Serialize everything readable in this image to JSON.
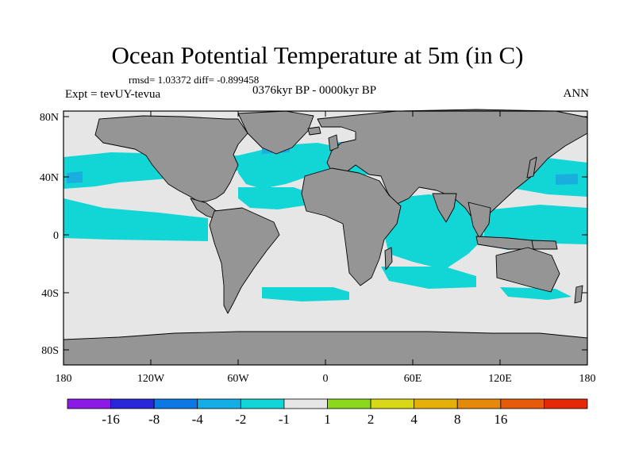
{
  "title": "Ocean Potential Temperature at 5m (in C)",
  "stats": "rmsd= 1.03372 diff= -0.899458",
  "experiment": "Expt = tevUY-tevua",
  "period": "0376kyr BP - 0000kyr BP",
  "season": "ANN",
  "colors": {
    "land": "#959595",
    "no_change": "#e6e6e6",
    "cooling_1_2": "#12d5d5",
    "cooling_2_4": "#1aaedf",
    "cooling_4_8": "#1c73e0",
    "coast": "#000000"
  },
  "axes": {
    "lon_labels": [
      "180",
      "120W",
      "60W",
      "0",
      "60E",
      "120E",
      "180"
    ],
    "lat_labels": [
      "80N",
      "40N",
      "0",
      "40S",
      "80S"
    ]
  },
  "colorbar": {
    "colors": [
      "#8c1ae6",
      "#2a26d9",
      "#0b78e6",
      "#14aee6",
      "#12d5d5",
      "#e6e6e6",
      "#8ad91c",
      "#d8d816",
      "#e6b00a",
      "#e6890a",
      "#e65a0a",
      "#e6280a"
    ],
    "labels": [
      "-16",
      "-8",
      "-4",
      "-2",
      "-1",
      "1",
      "2",
      "4",
      "8",
      "16"
    ]
  }
}
